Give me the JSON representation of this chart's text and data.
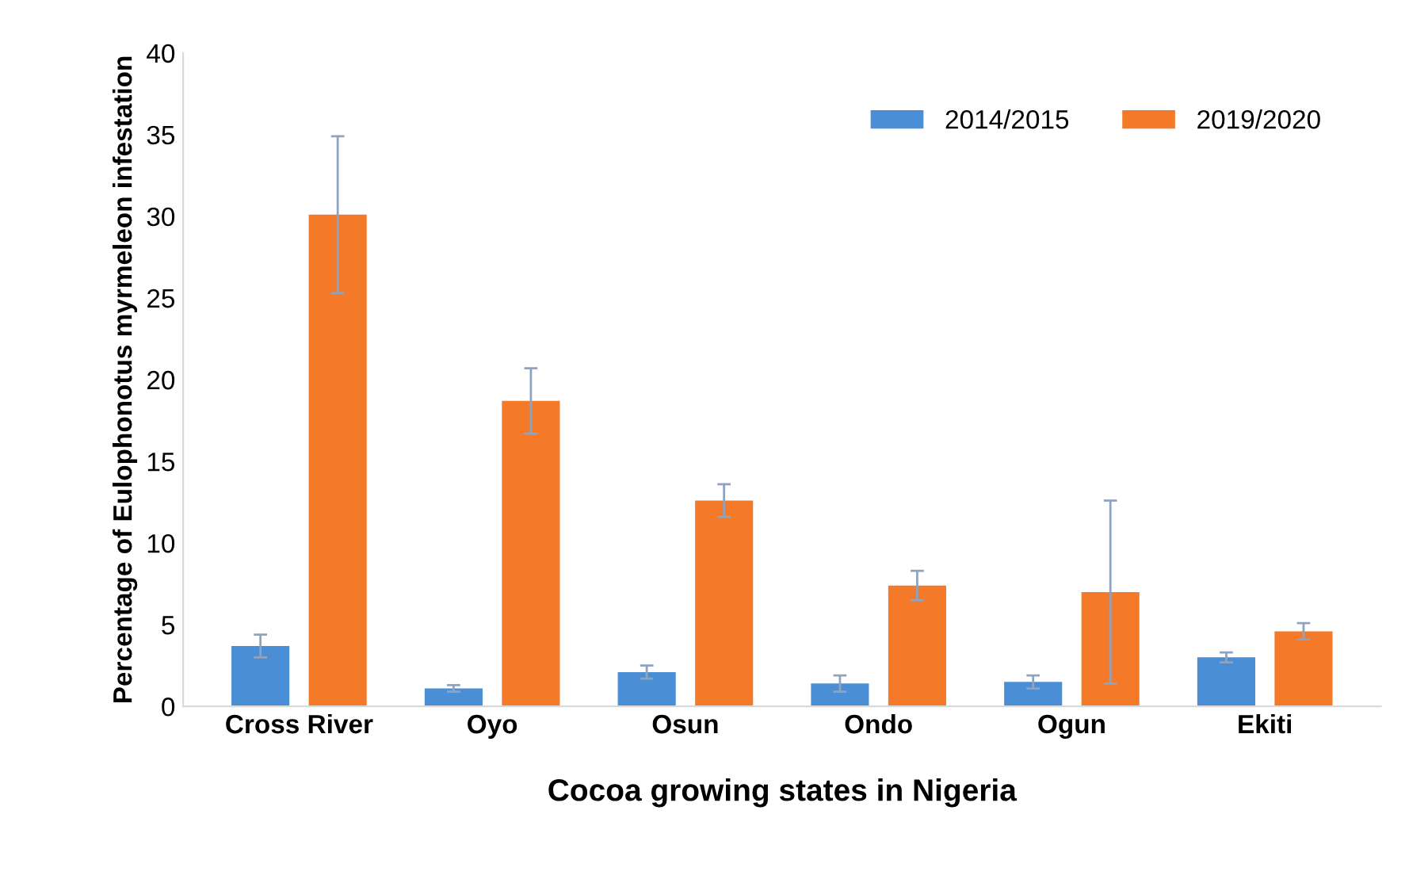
{
  "chart_data": {
    "type": "bar",
    "xlabel": "Cocoa growing states in Nigeria",
    "ylabel": "Percentage of Eulophonotus myrmeleon infestation",
    "categories": [
      "Cross River",
      "Oyo",
      "Osun",
      "Ondo",
      "Ogun",
      "Ekiti"
    ],
    "series": [
      {
        "name": "2014/2015",
        "color": "#4a8fd6",
        "values": [
          3.7,
          1.1,
          2.1,
          1.4,
          1.5,
          3.0
        ],
        "errors": [
          0.7,
          0.2,
          0.4,
          0.5,
          0.4,
          0.3
        ]
      },
      {
        "name": "2019/2020",
        "color": "#f47a2a",
        "values": [
          30.1,
          18.7,
          12.6,
          7.4,
          7.0,
          4.6
        ],
        "errors": [
          4.8,
          2.0,
          1.0,
          0.9,
          5.6,
          0.5
        ]
      }
    ],
    "ylim": [
      0,
      40
    ],
    "yticks": [
      0,
      5,
      10,
      15,
      20,
      25,
      30,
      35,
      40
    ],
    "grid": false,
    "legend": "top right"
  }
}
